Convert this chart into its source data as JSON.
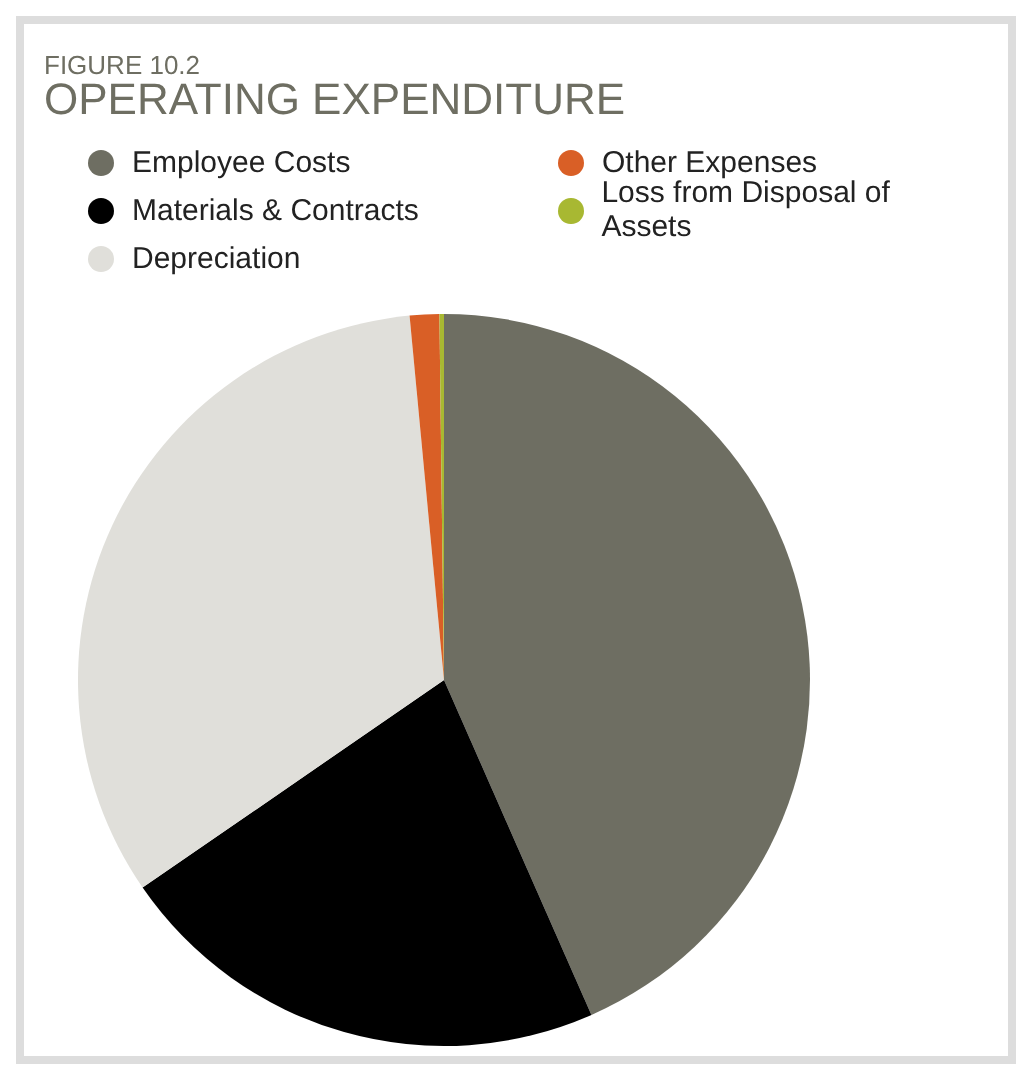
{
  "chart_data": {
    "type": "pie",
    "subtitle": "FIGURE 10.2",
    "title": "OPERATING EXPENDITURE",
    "categories": [
      "Employee Costs",
      "Materials & Contracts",
      "Depreciation",
      "Other Expenses",
      "Loss from Disposal of Assets"
    ],
    "values": [
      43.4,
      22,
      33.1,
      1.3,
      0.2
    ],
    "colors": [
      "#6e6e62",
      "#000000",
      "#e0dfda",
      "#d95f26",
      "#a8b832"
    ],
    "legend": "top"
  }
}
